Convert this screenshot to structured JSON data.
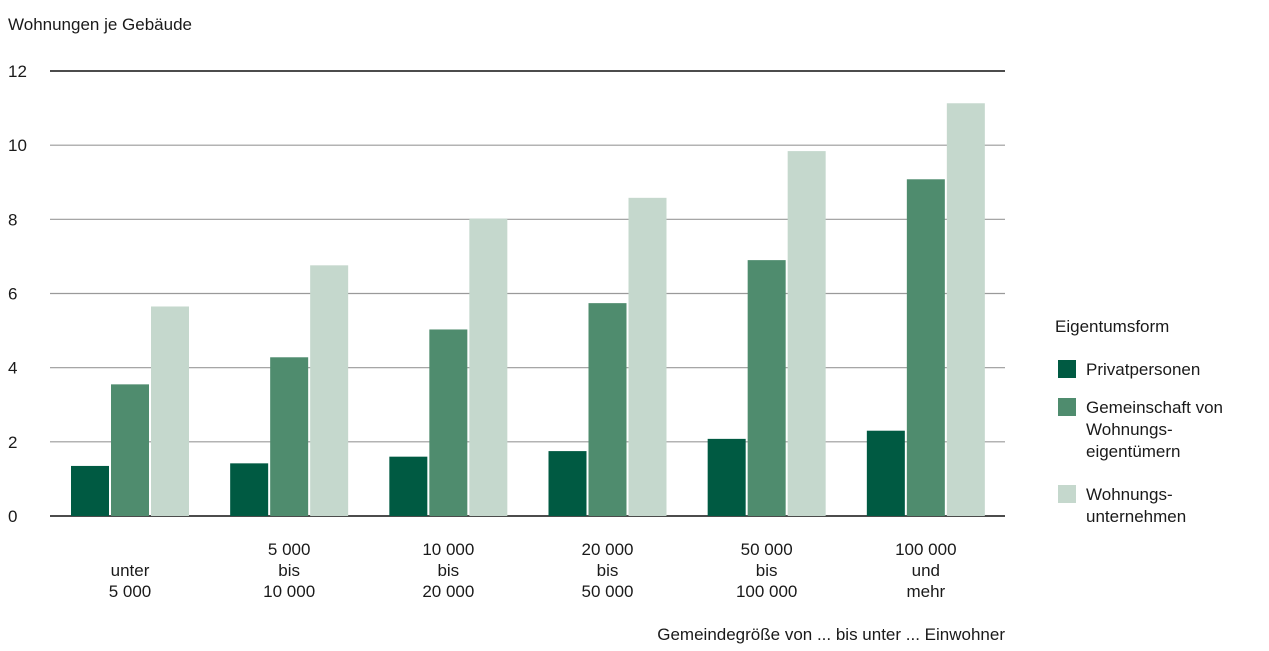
{
  "chart_data": {
    "type": "bar",
    "ylabel": "Wohnungen je Gebäude",
    "xlabel": "Gemeindegröße von ... bis unter ... Einwohner",
    "ylim": [
      0,
      12
    ],
    "yticks": [
      0,
      2,
      4,
      6,
      8,
      10,
      12
    ],
    "grid": true,
    "legend_title": "Eigentumsform",
    "legend_position": "right",
    "categories": [
      [
        "unter",
        "5 000"
      ],
      [
        "5 000",
        "bis",
        "10 000"
      ],
      [
        "10 000",
        "bis",
        "20 000"
      ],
      [
        "20 000",
        "bis",
        "50 000"
      ],
      [
        "50 000",
        "bis",
        "100 000"
      ],
      [
        "100 000",
        "und",
        "mehr"
      ]
    ],
    "series": [
      {
        "name": [
          "Privatpersonen"
        ],
        "color": "#005a42",
        "values": [
          1.35,
          1.42,
          1.6,
          1.75,
          2.08,
          2.3
        ]
      },
      {
        "name": [
          "Gemeinschaft von",
          "Wohnungs-",
          "eigentümern"
        ],
        "color": "#4f8c6e",
        "values": [
          3.55,
          4.28,
          5.03,
          5.74,
          6.9,
          9.08
        ]
      },
      {
        "name": [
          "Wohnungs-",
          "unternehmen"
        ],
        "color": "#c5d8cd",
        "values": [
          5.65,
          6.76,
          8.02,
          8.58,
          9.84,
          11.13
        ]
      }
    ]
  }
}
